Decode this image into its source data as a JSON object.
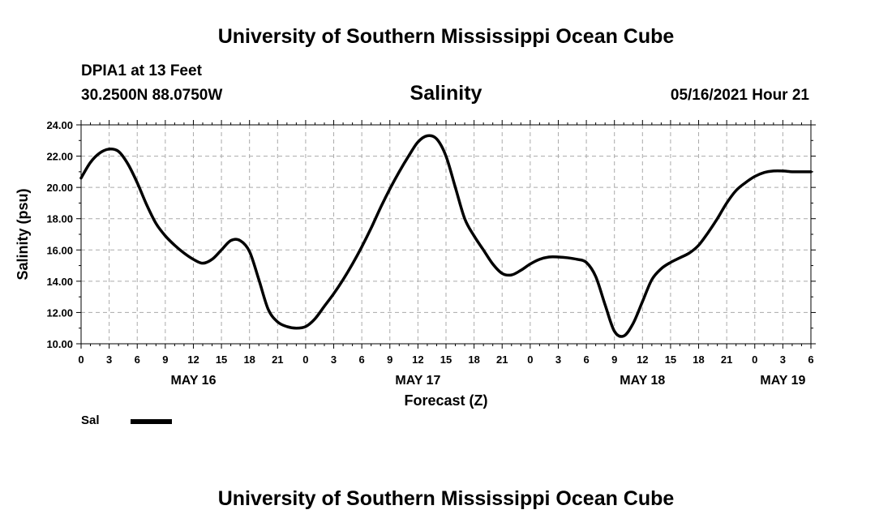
{
  "header": {
    "top_title": "University of Southern Mississippi Ocean Cube",
    "station": "DPIA1 at 13 Feet",
    "coords": "30.2500N  88.0750W",
    "chart_title": "Salinity",
    "run_time": "05/16/2021 Hour 21"
  },
  "footer": {
    "bottom_title": "University of Southern Mississippi Ocean Cube"
  },
  "legend": {
    "label": "Sal"
  },
  "chart_data": {
    "type": "line",
    "title": "Salinity",
    "xlabel": "Forecast (Z)",
    "ylabel": "Salinity (psu)",
    "ylim": [
      10,
      24
    ],
    "yticks": [
      10,
      12,
      14,
      16,
      18,
      20,
      22,
      24
    ],
    "ytick_labels": [
      "10.00",
      "12.00",
      "14.00",
      "16.00",
      "18.00",
      "20.00",
      "22.00",
      "24.00"
    ],
    "xlim_hours": [
      0,
      78
    ],
    "xticks_hours": [
      0,
      3,
      6,
      9,
      12,
      15,
      18,
      21,
      24,
      27,
      30,
      33,
      36,
      39,
      42,
      45,
      48,
      51,
      54,
      57,
      60,
      63,
      66,
      69,
      72,
      75,
      78
    ],
    "xtick_labels": [
      "0",
      "3",
      "6",
      "9",
      "12",
      "15",
      "18",
      "21",
      "0",
      "3",
      "6",
      "9",
      "12",
      "15",
      "18",
      "21",
      "0",
      "3",
      "6",
      "9",
      "12",
      "15",
      "18",
      "21",
      "0",
      "3",
      "6"
    ],
    "date_labels": [
      {
        "hour": 12,
        "text": "MAY 16"
      },
      {
        "hour": 36,
        "text": "MAY 17"
      },
      {
        "hour": 60,
        "text": "MAY 18"
      },
      {
        "hour": 75,
        "text": "MAY 19"
      }
    ],
    "grid": true,
    "series": [
      {
        "name": "Sal",
        "color": "#000000",
        "x": [
          0,
          1,
          2,
          3,
          4,
          5,
          6,
          7,
          8,
          9,
          10,
          11,
          12,
          13,
          14,
          15,
          16,
          17,
          18,
          19,
          20,
          21,
          22,
          23,
          24,
          25,
          26,
          27,
          28,
          29,
          30,
          31,
          32,
          33,
          34,
          35,
          36,
          37,
          38,
          39,
          40,
          41,
          42,
          43,
          44,
          45,
          46,
          47,
          48,
          49,
          50,
          51,
          52,
          53,
          54,
          55,
          56,
          57,
          58,
          59,
          60,
          61,
          62,
          63,
          64,
          65,
          66,
          67,
          68,
          69,
          70,
          71,
          72,
          73,
          74,
          75,
          76,
          77,
          78
        ],
        "y": [
          20.6,
          21.6,
          22.2,
          22.45,
          22.3,
          21.5,
          20.3,
          18.9,
          17.7,
          16.9,
          16.3,
          15.8,
          15.4,
          15.15,
          15.4,
          16.0,
          16.6,
          16.6,
          15.9,
          14.1,
          12.2,
          11.4,
          11.1,
          11.0,
          11.1,
          11.6,
          12.4,
          13.2,
          14.1,
          15.1,
          16.2,
          17.4,
          18.7,
          19.9,
          21.0,
          22.0,
          22.9,
          23.3,
          23.1,
          22.0,
          20.0,
          18.0,
          16.9,
          16.0,
          15.1,
          14.5,
          14.4,
          14.7,
          15.1,
          15.4,
          15.55,
          15.55,
          15.5,
          15.4,
          15.2,
          14.3,
          12.5,
          10.8,
          10.5,
          11.3,
          12.7,
          14.1,
          14.8,
          15.2,
          15.5,
          15.8,
          16.3,
          17.1,
          18.0,
          19.0,
          19.8,
          20.3,
          20.7,
          20.95,
          21.05,
          21.05,
          21.0,
          21.0,
          21.0
        ]
      }
    ]
  }
}
